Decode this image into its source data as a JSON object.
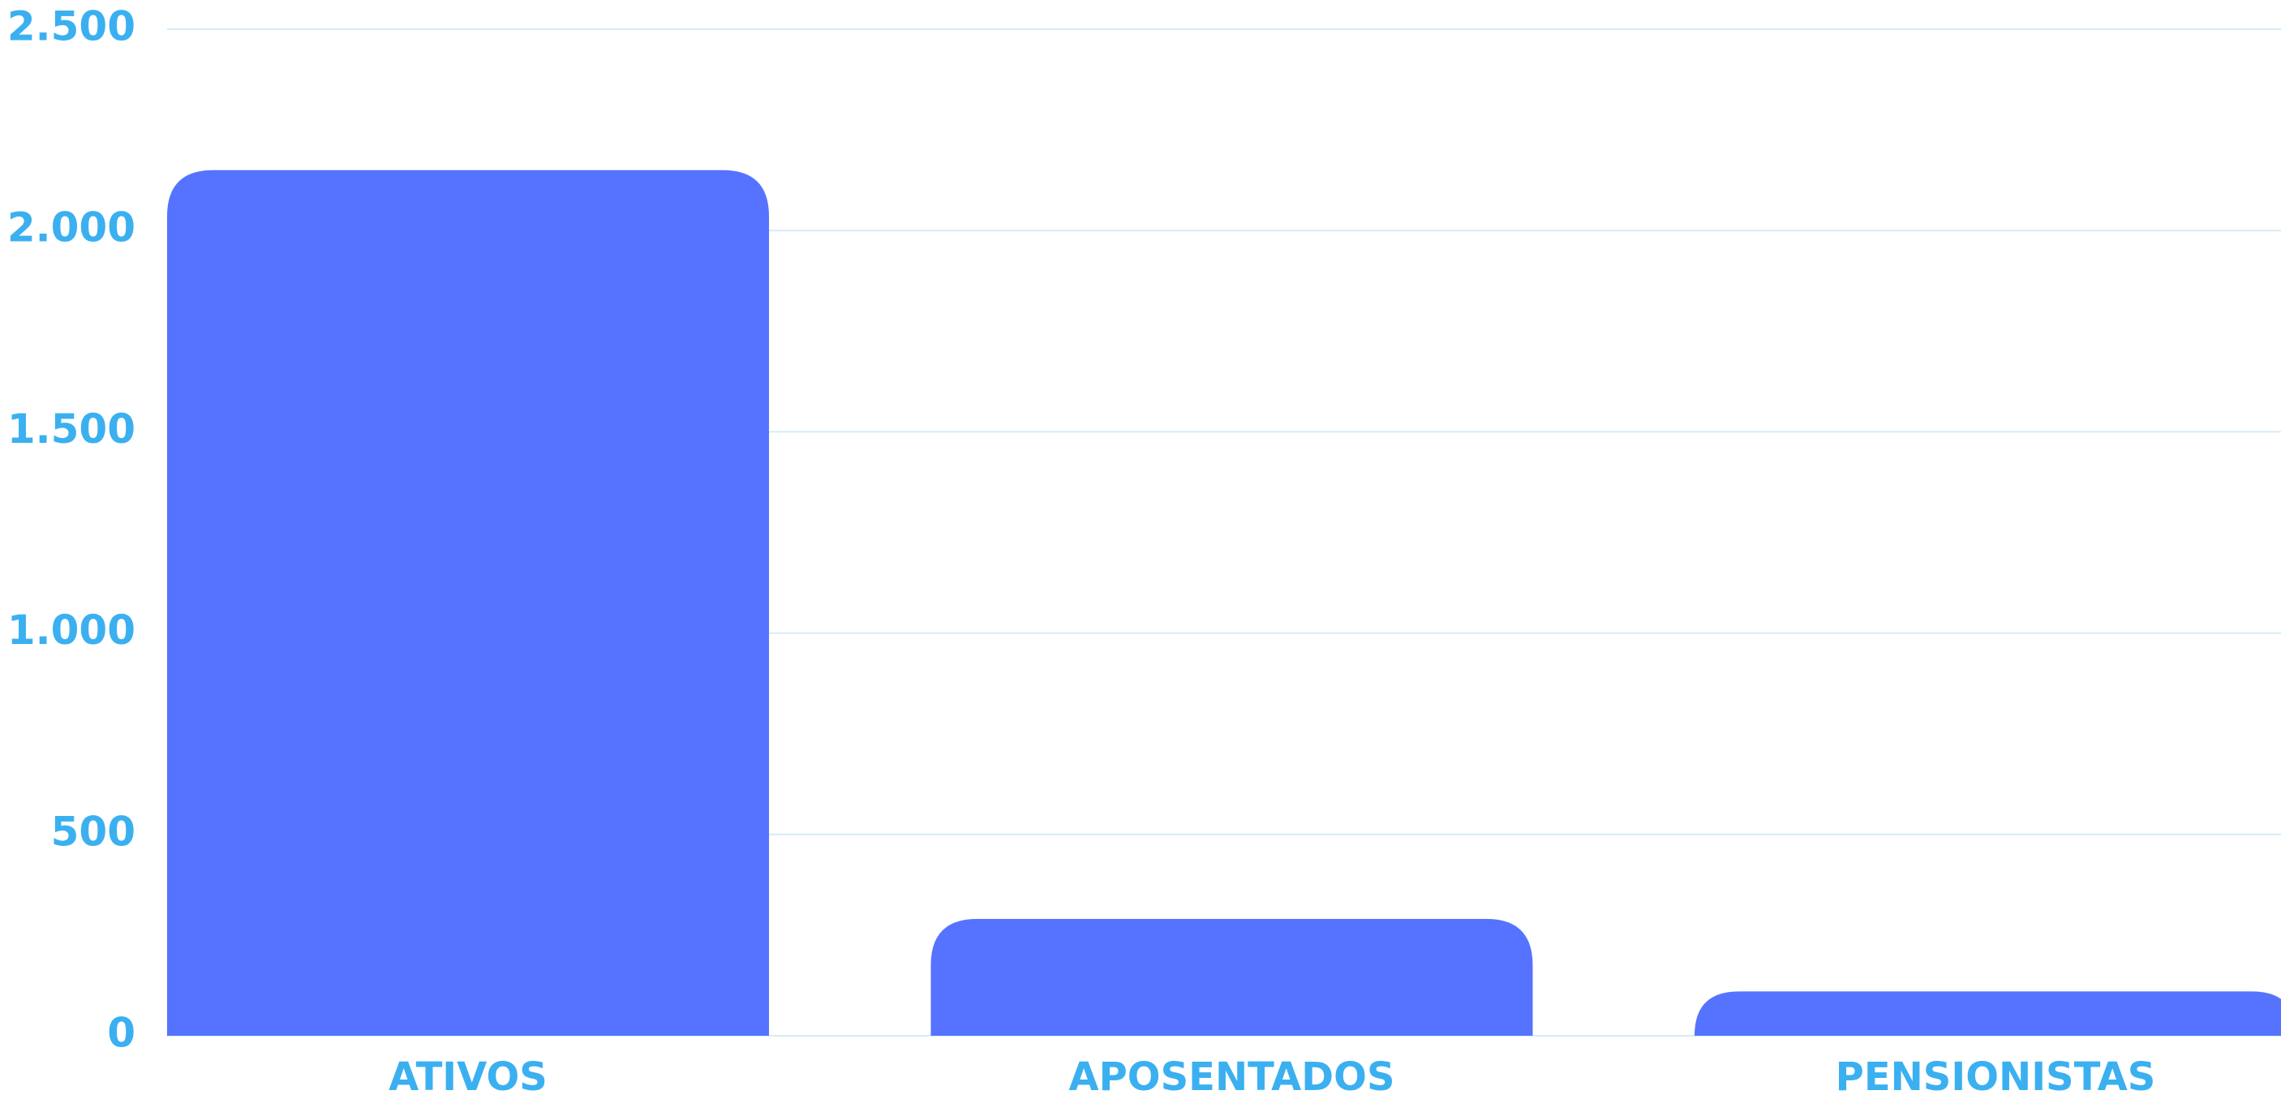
{
  "chart_data": {
    "type": "bar",
    "categories": [
      "ATIVOS",
      "APOSENTADOS",
      "PENSIONISTAS"
    ],
    "values": [
      2150,
      290,
      110
    ],
    "color": "#5573ff",
    "ylim": [
      0,
      2500
    ],
    "yticks": [
      0,
      500,
      {
        "value": 1000,
        "label": "1.000"
      },
      {
        "value": 1500,
        "label": "1.500"
      },
      {
        "value": 2000,
        "label": "2.000"
      },
      {
        "value": 2500,
        "label": "2.500"
      }
    ],
    "grid": true
  }
}
